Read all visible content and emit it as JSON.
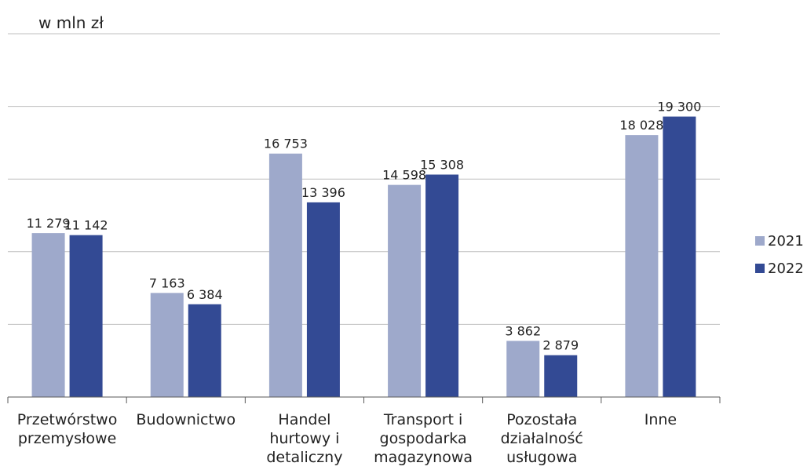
{
  "chart_data": {
    "type": "bar",
    "unit_label": "w mln zł",
    "categories": [
      [
        "Przetwórstwo",
        "przemysłowe"
      ],
      [
        "Budownictwo"
      ],
      [
        "Handel",
        "hurtowy i",
        "detaliczny"
      ],
      [
        "Transport i",
        "gospodarka",
        "magazynowa"
      ],
      [
        "Pozostała",
        "działalność",
        "usługowa"
      ],
      [
        "Inne"
      ]
    ],
    "series": [
      {
        "name": "2021",
        "color": "#9ea9cb",
        "values": [
          11279,
          7163,
          16753,
          14598,
          3862,
          18028
        ],
        "labels": [
          "11 279",
          "7 163",
          "16 753",
          "14 598",
          "3 862",
          "18 028"
        ]
      },
      {
        "name": "2022",
        "color": "#334a94",
        "values": [
          11142,
          6384,
          13396,
          15308,
          2879,
          19300
        ],
        "labels": [
          "11 142",
          "6 384",
          "13 396",
          "15 308",
          "2 879",
          "19 300"
        ]
      }
    ],
    "ylim": [
      0,
      25000
    ],
    "grid": true,
    "legend_position": "right"
  }
}
